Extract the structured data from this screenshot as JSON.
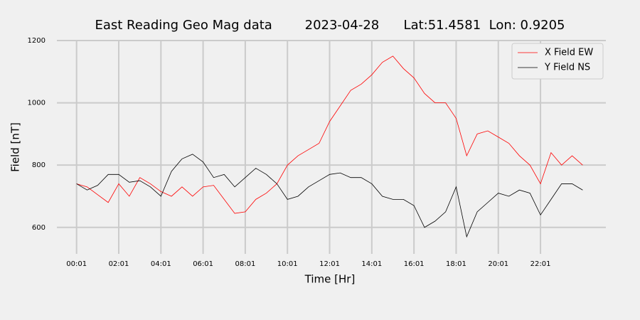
{
  "chart_data": {
    "type": "line",
    "title": "East Reading Geo Mag data        2023-04-28      Lat:51.4581  Lon: 0.9205",
    "xlabel": "Time  [Hr]",
    "ylabel": "Field  [nT]",
    "x": [
      1,
      31,
      61,
      91,
      121,
      151,
      181,
      211,
      241,
      271,
      301,
      331,
      361,
      391,
      421,
      451,
      481,
      511,
      541,
      571,
      601,
      631,
      661,
      691,
      721,
      751,
      781,
      811,
      841,
      871,
      901,
      931,
      961,
      991,
      1021,
      1051,
      1081,
      1111,
      1141,
      1171,
      1201,
      1231,
      1261,
      1291,
      1321,
      1351,
      1381,
      1411,
      1441
    ],
    "series": [
      {
        "name": "X Field EW",
        "color": "#ff0000",
        "values": [
          740,
          730,
          705,
          680,
          740,
          700,
          760,
          740,
          715,
          700,
          730,
          700,
          730,
          735,
          690,
          645,
          650,
          690,
          710,
          740,
          800,
          830,
          850,
          870,
          940,
          990,
          1040,
          1060,
          1090,
          1130,
          1150,
          1110,
          1080,
          1030,
          1000,
          1000,
          950,
          830,
          900,
          910,
          890,
          870,
          830,
          800,
          740,
          840,
          800,
          830,
          800
        ]
      },
      {
        "name": "Y Field NS",
        "color": "#000000",
        "values": [
          740,
          720,
          735,
          770,
          770,
          745,
          750,
          730,
          700,
          780,
          820,
          835,
          810,
          760,
          770,
          730,
          760,
          790,
          770,
          740,
          690,
          700,
          730,
          750,
          770,
          775,
          760,
          760,
          740,
          700,
          690,
          690,
          670,
          600,
          620,
          650,
          730,
          570,
          650,
          680,
          710,
          700,
          720,
          710,
          640,
          690,
          740,
          740,
          720
        ]
      }
    ],
    "xlim": [
      -55,
      1507
    ],
    "xticks": [
      {
        "value": 1,
        "label": "00:01"
      },
      {
        "value": 121,
        "label": "02:01"
      },
      {
        "value": 241,
        "label": "04:01"
      },
      {
        "value": 361,
        "label": "06:01"
      },
      {
        "value": 481,
        "label": "08:01"
      },
      {
        "value": 601,
        "label": "10:01"
      },
      {
        "value": 721,
        "label": "12:01"
      },
      {
        "value": 841,
        "label": "14:01"
      },
      {
        "value": 961,
        "label": "16:01"
      },
      {
        "value": 1081,
        "label": "18:01"
      },
      {
        "value": 1201,
        "label": "20:01"
      },
      {
        "value": 1321,
        "label": "22:01"
      }
    ],
    "ylim": [
      515,
      1200
    ],
    "yticks": [
      600,
      800,
      1000,
      1200
    ],
    "grid": true,
    "legend": "upper right"
  }
}
